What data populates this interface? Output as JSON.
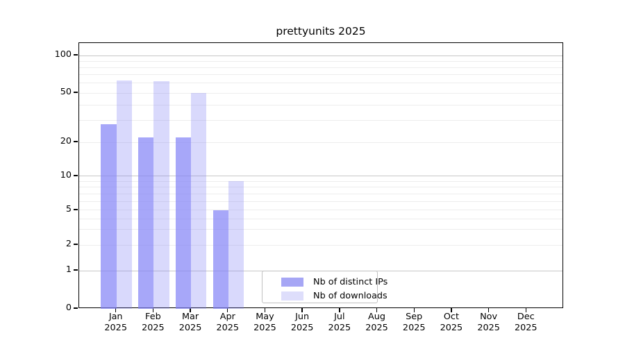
{
  "chart_data": {
    "type": "bar",
    "title": "prettyunits 2025",
    "categories": [
      "Jan",
      "Feb",
      "Mar",
      "Apr",
      "May",
      "Jun",
      "Jul",
      "Aug",
      "Sep",
      "Oct",
      "Nov",
      "Dec"
    ],
    "category_year": "2025",
    "series": [
      {
        "name": "Nb of distinct IPs",
        "color": "rgba(130,130,246,0.70)",
        "legend_color": "#a6a6f5",
        "values": [
          28,
          22,
          22,
          5,
          null,
          null,
          null,
          null,
          null,
          null,
          null,
          null
        ]
      },
      {
        "name": "Nb of downloads",
        "color": "rgba(130,130,246,0.30)",
        "legend_color": "#dedefb",
        "values": [
          63,
          62,
          50,
          9,
          null,
          null,
          null,
          null,
          null,
          null,
          null,
          null
        ]
      }
    ],
    "y_axis": {
      "ticks": [
        {
          "value": 100,
          "label": "100"
        },
        {
          "value": 50,
          "label": "50"
        },
        {
          "value": 20,
          "label": "20"
        },
        {
          "value": 10,
          "label": "10"
        },
        {
          "value": 5,
          "label": "5"
        },
        {
          "value": 2,
          "label": "2"
        },
        {
          "value": 1,
          "label": "1"
        },
        {
          "value": 0,
          "label": "0"
        }
      ],
      "major_gridlines": [
        1,
        10,
        100
      ],
      "minor_gridlines": [
        2,
        3,
        4,
        5,
        6,
        7,
        8,
        9,
        20,
        30,
        40,
        50,
        60,
        70,
        80,
        90
      ],
      "scale": "pseudo-log",
      "scale_points": [
        [
          0,
          0.0
        ],
        [
          1,
          0.1436
        ],
        [
          2,
          0.2402
        ],
        [
          5,
          0.3708
        ],
        [
          10,
          0.4987
        ],
        [
          20,
          0.6266
        ],
        [
          50,
          0.812
        ],
        [
          100,
          0.953
        ]
      ],
      "range_top_value": 126
    },
    "legend_position": "lower center",
    "grid": true
  }
}
